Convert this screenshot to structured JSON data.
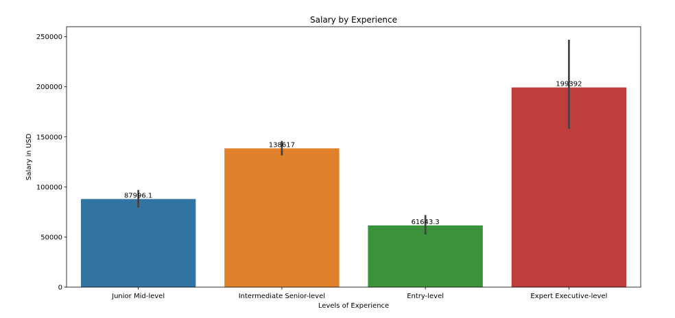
{
  "chart_data": {
    "type": "bar",
    "title": "Salary by Experience",
    "xlabel": "Levels of Experience",
    "ylabel": "Salary in USD",
    "categories": [
      "Junior Mid-level",
      "Intermediate Senior-level",
      "Entry-level",
      "Expert Executive-level"
    ],
    "values": [
      87996.1,
      138617,
      61643.3,
      199392
    ],
    "value_labels": [
      "87996.1",
      "138617",
      "61643.3",
      "199392"
    ],
    "error_bars": [
      {
        "low": 79500,
        "high": 97000
      },
      {
        "low": 131500,
        "high": 146000
      },
      {
        "low": 52500,
        "high": 72000
      },
      {
        "low": 158000,
        "high": 247000
      }
    ],
    "colors": [
      "#3274a1",
      "#e1812c",
      "#3a923a",
      "#c03d3e"
    ],
    "error_color": "#424242",
    "ylim": [
      0,
      260000
    ],
    "yticks": [
      0,
      50000,
      100000,
      150000,
      200000,
      250000
    ],
    "ytick_labels": [
      "0",
      "50000",
      "100000",
      "150000",
      "200000",
      "250000"
    ],
    "grid": false,
    "legend": "none"
  }
}
